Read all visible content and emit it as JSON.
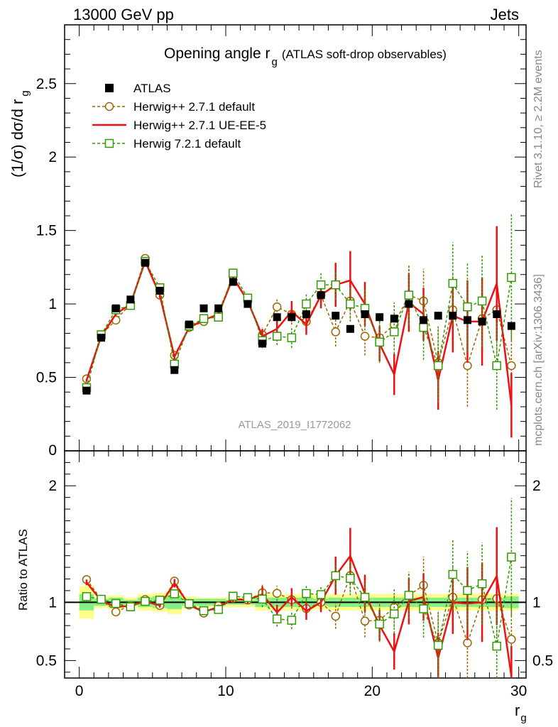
{
  "header": {
    "left": "13000 GeV pp",
    "right": "Jets"
  },
  "side": {
    "rivet": "Rivet 3.1.10, ≥ 2.2M events",
    "mcplots": "mcplots.cern.ch [arXiv:1306.3436]"
  },
  "chart_data": [
    {
      "type": "line",
      "title_main": "Opening angle r",
      "title_sub": "g",
      "title_extra": "(ATLAS soft-drop observables)",
      "ylabel": "(1/σ) dσ/d r",
      "ylabel_sub": "g",
      "watermark": "ATLAS_2019_I1772062",
      "xlim": [
        -1,
        30.5
      ],
      "ylim": [
        0,
        2.9
      ],
      "yticks": [
        0.5,
        1,
        1.5,
        2,
        2.5
      ],
      "ytick_labels": [
        "0.5",
        "1",
        "1.5",
        "2",
        "2.5"
      ],
      "partial_tick_label": "0",
      "x": [
        0.5,
        1.5,
        2.5,
        3.5,
        4.5,
        5.5,
        6.5,
        7.5,
        8.5,
        9.5,
        10.5,
        11.5,
        12.5,
        13.5,
        14.5,
        15.5,
        16.5,
        17.5,
        18.5,
        19.5,
        20.5,
        21.5,
        22.5,
        23.5,
        24.5,
        25.5,
        26.5,
        27.5,
        28.5,
        29.5
      ],
      "series": [
        {
          "name": "ATLAS",
          "color": "#000000",
          "style": "data",
          "values": [
            0.41,
            0.77,
            0.97,
            1.03,
            1.28,
            1.09,
            0.55,
            0.86,
            0.97,
            0.97,
            1.15,
            1.0,
            0.73,
            0.91,
            0.91,
            0.93,
            1.06,
            0.92,
            0.83,
            0.93,
            0.91,
            0.9,
            1.0,
            0.89,
            0.92,
            0.92,
            0.89,
            0.88,
            0.93,
            0.85
          ]
        },
        {
          "name": "Herwig++ 2.7.1 default",
          "color": "#996600",
          "style": "circle",
          "values": [
            0.49,
            0.79,
            0.89,
            1.0,
            1.31,
            1.06,
            0.65,
            0.84,
            0.88,
            0.94,
            1.19,
            1.02,
            0.79,
            0.98,
            0.93,
            0.88,
            1.06,
            0.81,
            1.02,
            0.78,
            0.77,
            0.86,
            1.06,
            1.02,
            0.6,
            0.96,
            0.58,
            0.9,
            0.96,
            0.58
          ],
          "errors": [
            0.01,
            0.01,
            0.01,
            0.01,
            0.02,
            0.02,
            0.02,
            0.02,
            0.02,
            0.02,
            0.03,
            0.03,
            0.05,
            0.06,
            0.07,
            0.08,
            0.08,
            0.1,
            0.12,
            0.13,
            0.14,
            0.15,
            0.2,
            0.22,
            0.25,
            0.25,
            0.28,
            0.28,
            0.3,
            0.3
          ]
        },
        {
          "name": "Herwig++ 2.7.1 UE-EE-5",
          "color": "#ee1111",
          "style": "line",
          "values": [
            0.48,
            0.78,
            0.93,
            1.0,
            1.29,
            1.06,
            0.64,
            0.84,
            0.89,
            0.93,
            1.18,
            1.02,
            0.78,
            0.83,
            0.95,
            0.86,
            1.06,
            1.13,
            1.16,
            1.0,
            0.73,
            0.52,
            1.01,
            0.93,
            0.48,
            0.92,
            0.88,
            0.88,
            1.14,
            0.31
          ],
          "errors": [
            0.01,
            0.01,
            0.01,
            0.01,
            0.02,
            0.02,
            0.02,
            0.02,
            0.02,
            0.02,
            0.03,
            0.03,
            0.05,
            0.06,
            0.07,
            0.07,
            0.09,
            0.15,
            0.2,
            0.15,
            0.12,
            0.14,
            0.2,
            0.18,
            0.2,
            0.25,
            0.28,
            0.3,
            0.39,
            0.22
          ]
        },
        {
          "name": "Herwig 7.2.1 default",
          "color": "#339900",
          "style": "square",
          "values": [
            0.43,
            0.79,
            0.96,
            0.99,
            1.29,
            1.11,
            0.59,
            0.85,
            0.9,
            0.91,
            1.21,
            1.04,
            0.75,
            0.78,
            0.77,
            1.0,
            1.13,
            1.13,
            1.0,
            0.97,
            0.74,
            0.81,
            1.06,
            0.84,
            0.58,
            1.14,
            0.98,
            1.02,
            0.58,
            1.18
          ],
          "errors": [
            0.01,
            0.01,
            0.01,
            0.01,
            0.02,
            0.02,
            0.02,
            0.02,
            0.02,
            0.02,
            0.03,
            0.03,
            0.05,
            0.06,
            0.07,
            0.07,
            0.08,
            0.1,
            0.12,
            0.13,
            0.14,
            0.15,
            0.2,
            0.22,
            0.25,
            0.28,
            0.3,
            0.31,
            0.3,
            0.43
          ]
        }
      ],
      "legend_position": "top-left"
    },
    {
      "type": "line",
      "ylabel": "Ratio to ATLAS",
      "xlabel": "r",
      "xlabel_sub": "g",
      "xlim": [
        -1,
        30.5
      ],
      "ylim": [
        0.35,
        2.3
      ],
      "yticks": [
        0.5,
        1,
        2
      ],
      "ytick_labels": [
        "0.5",
        "1",
        "2"
      ],
      "xticks": [
        0,
        10,
        20,
        30
      ],
      "xtick_labels": [
        "0",
        "10",
        "20",
        "30"
      ],
      "band_green_halfwidth": [
        0.07,
        0.03,
        0.04,
        0.02,
        0.04,
        0.05,
        0.06,
        0.03,
        0.03,
        0.03,
        0.02,
        0.02,
        0.04,
        0.04,
        0.04,
        0.04,
        0.03,
        0.04,
        0.04,
        0.04,
        0.04,
        0.04,
        0.04,
        0.04,
        0.04,
        0.04,
        0.04,
        0.04,
        0.04,
        0.05
      ],
      "band_yellow_halfwidth": [
        0.14,
        0.05,
        0.06,
        0.04,
        0.07,
        0.08,
        0.1,
        0.05,
        0.04,
        0.04,
        0.04,
        0.04,
        0.07,
        0.07,
        0.07,
        0.07,
        0.06,
        0.07,
        0.07,
        0.07,
        0.07,
        0.07,
        0.07,
        0.07,
        0.07,
        0.07,
        0.07,
        0.07,
        0.07,
        0.07
      ]
    }
  ]
}
